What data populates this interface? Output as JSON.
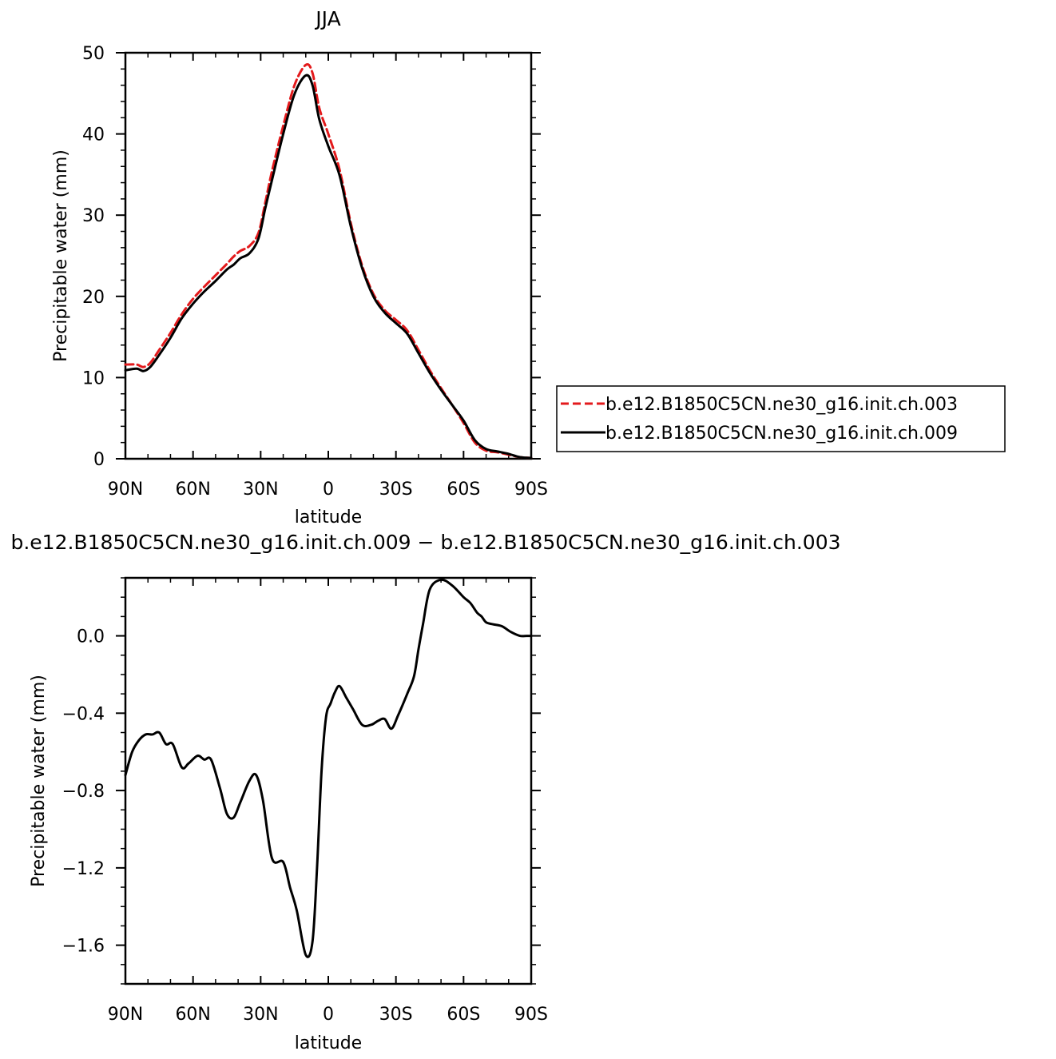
{
  "chart_data": [
    {
      "type": "line",
      "title": "JJA",
      "xlabel": "latitude",
      "ylabel": "Precipitable water (mm)",
      "xlim": [
        90,
        -90
      ],
      "ylim": [
        0,
        50
      ],
      "x_ticks": [
        90,
        60,
        30,
        0,
        -30,
        -60,
        -90
      ],
      "x_tick_labels": [
        "90N",
        "60N",
        "30N",
        "0",
        "30S",
        "60S",
        "90S"
      ],
      "y_ticks": [
        0,
        10,
        20,
        30,
        40,
        50
      ],
      "y_tick_labels": [
        "0",
        "10",
        "20",
        "30",
        "40",
        "50"
      ],
      "grid": false,
      "legend": "outside-right",
      "x": [
        90,
        85,
        82,
        79,
        75,
        70,
        65,
        60,
        55,
        50,
        45,
        42,
        39,
        35,
        31,
        28,
        25,
        20,
        15,
        10,
        7,
        4,
        0,
        -5,
        -10,
        -15,
        -20,
        -25,
        -30,
        -35,
        -40,
        -45,
        -50,
        -55,
        -60,
        -65,
        -70,
        -75,
        -80,
        -85,
        -90
      ],
      "series": [
        {
          "name": "b.e12.B1850C5CN.ne30_g16.init.ch.003",
          "color": "#e31a1c",
          "dash": "dashed",
          "values": [
            11.6,
            11.6,
            11.3,
            11.8,
            13.4,
            15.5,
            17.8,
            19.7,
            21.2,
            22.6,
            24.0,
            24.9,
            25.6,
            26.2,
            27.8,
            31.5,
            35.4,
            41.0,
            46.0,
            48.5,
            47.5,
            43.2,
            40.0,
            35.6,
            29.0,
            23.8,
            20.3,
            18.3,
            17.1,
            15.8,
            13.4,
            10.9,
            8.7,
            6.6,
            4.4,
            2.0,
            1.0,
            0.8,
            0.5,
            0.2,
            0.1
          ]
        },
        {
          "name": "b.e12.B1850C5CN.ne30_g16.init.ch.009",
          "color": "#000000",
          "dash": "solid",
          "values": [
            10.9,
            11.1,
            10.8,
            11.3,
            12.8,
            14.9,
            17.3,
            19.1,
            20.6,
            21.9,
            23.3,
            23.9,
            24.7,
            25.3,
            27.1,
            30.8,
            34.3,
            40.0,
            44.9,
            47.2,
            46.0,
            41.8,
            38.5,
            34.9,
            28.6,
            23.5,
            20.0,
            18.0,
            16.7,
            15.4,
            13.0,
            10.6,
            8.5,
            6.6,
            4.7,
            2.3,
            1.2,
            0.9,
            0.6,
            0.2,
            0.1
          ]
        }
      ]
    },
    {
      "type": "line",
      "title": "b.e12.B1850C5CN.ne30_g16.init.ch.009 − b.e12.B1850C5CN.ne30_g16.init.ch.003",
      "xlabel": "latitude",
      "ylabel": "Precipitable water (mm)",
      "xlim": [
        90,
        -90
      ],
      "ylim": [
        -1.8,
        0.3
      ],
      "x_ticks": [
        90,
        60,
        30,
        0,
        -30,
        -60,
        -90
      ],
      "x_tick_labels": [
        "90N",
        "60N",
        "30N",
        "0",
        "30S",
        "60S",
        "90S"
      ],
      "y_ticks": [
        0.0,
        -0.4,
        -0.8,
        -1.2,
        -1.6
      ],
      "y_tick_labels": [
        "0.0",
        "−0.4",
        "−0.8",
        "−1.2",
        "−1.6"
      ],
      "grid": false,
      "x": [
        90,
        87,
        84,
        81,
        78,
        75,
        72,
        69,
        65,
        62,
        58,
        55,
        52,
        48,
        45,
        42,
        39,
        35,
        32,
        29,
        25,
        20,
        17,
        14,
        10,
        7,
        5,
        3,
        1,
        -1,
        -3,
        -5,
        -8,
        -11,
        -15,
        -19,
        -22,
        -25,
        -28,
        -31,
        -35,
        -38,
        -40,
        -42,
        -45,
        -50,
        -55,
        -60,
        -63,
        -66,
        -68,
        -70,
        -73,
        -77,
        -81,
        -85,
        -88,
        -90
      ],
      "series": [
        {
          "name": "",
          "color": "#000000",
          "values": [
            -0.72,
            -0.6,
            -0.54,
            -0.51,
            -0.51,
            -0.5,
            -0.56,
            -0.56,
            -0.68,
            -0.66,
            -0.62,
            -0.64,
            -0.64,
            -0.79,
            -0.92,
            -0.94,
            -0.86,
            -0.75,
            -0.72,
            -0.85,
            -1.15,
            -1.17,
            -1.3,
            -1.42,
            -1.65,
            -1.58,
            -1.2,
            -0.7,
            -0.42,
            -0.35,
            -0.29,
            -0.26,
            -0.32,
            -0.38,
            -0.46,
            -0.46,
            -0.44,
            -0.43,
            -0.48,
            -0.41,
            -0.3,
            -0.21,
            -0.07,
            0.06,
            0.24,
            0.29,
            0.26,
            0.2,
            0.17,
            0.12,
            0.1,
            0.07,
            0.06,
            0.05,
            0.02,
            0.0,
            0.0,
            0.0
          ]
        }
      ]
    }
  ]
}
